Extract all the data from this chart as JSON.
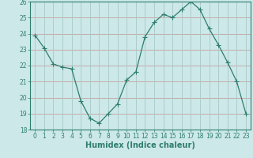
{
  "x": [
    0,
    1,
    2,
    3,
    4,
    5,
    6,
    7,
    8,
    9,
    10,
    11,
    12,
    13,
    14,
    15,
    16,
    17,
    18,
    19,
    20,
    21,
    22,
    23
  ],
  "y": [
    23.9,
    23.1,
    22.1,
    21.9,
    21.8,
    19.8,
    18.7,
    18.4,
    19.0,
    19.6,
    21.1,
    21.6,
    23.8,
    24.7,
    25.2,
    25.0,
    25.5,
    26.0,
    25.5,
    24.3,
    23.3,
    22.2,
    21.0,
    19.0
  ],
  "line_color": "#2e7d6e",
  "marker": "+",
  "marker_size": 4,
  "bg_color": "#cce8e8",
  "grid_color_h": "#c8a0a0",
  "grid_color_v": "#a8c8c8",
  "xlabel": "Humidex (Indice chaleur)",
  "ylim": [
    18,
    26
  ],
  "xlim": [
    -0.5,
    23.5
  ],
  "yticks": [
    18,
    19,
    20,
    21,
    22,
    23,
    24,
    25,
    26
  ],
  "xticks": [
    0,
    1,
    2,
    3,
    4,
    5,
    6,
    7,
    8,
    9,
    10,
    11,
    12,
    13,
    14,
    15,
    16,
    17,
    18,
    19,
    20,
    21,
    22,
    23
  ],
  "tick_fontsize": 5.5,
  "xlabel_fontsize": 7,
  "spine_color": "#2e7d6e"
}
